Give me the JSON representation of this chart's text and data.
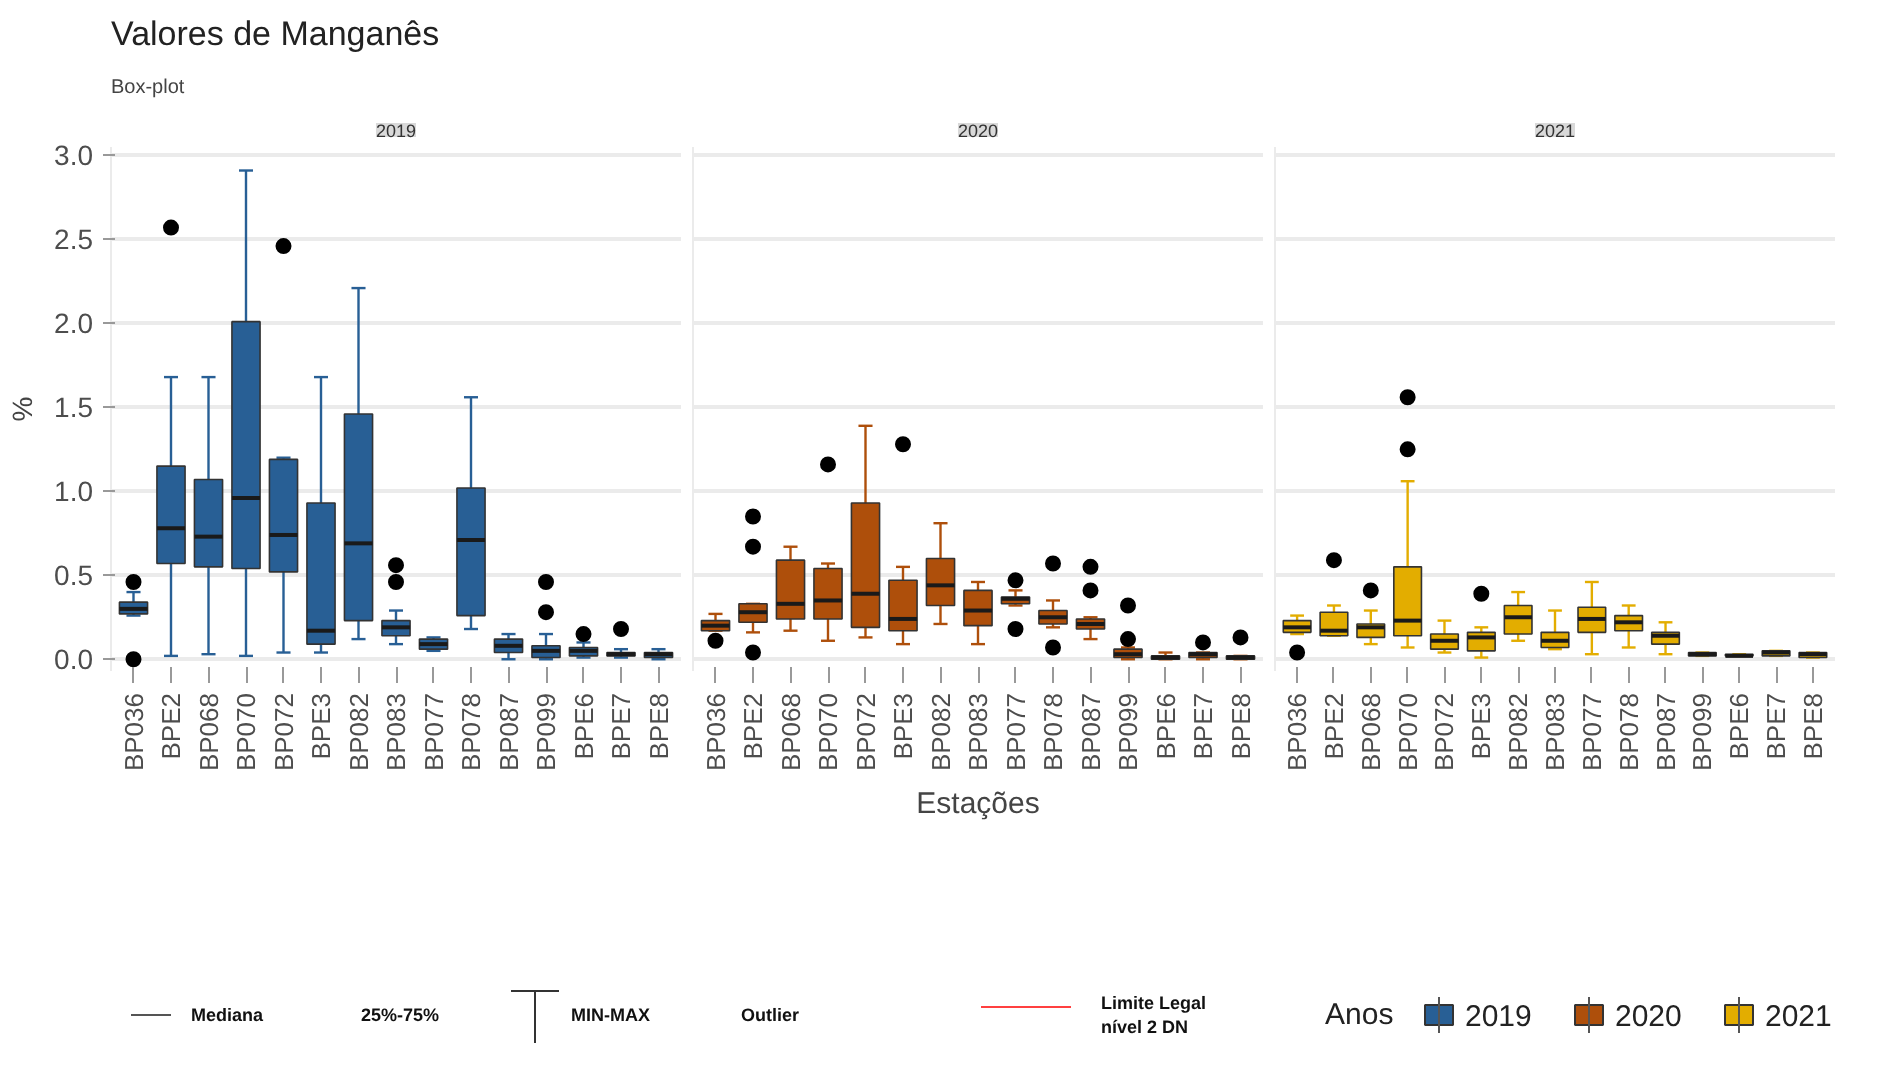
{
  "chart_data": [
    {
      "type": "box",
      "title": "Valores de Manganês",
      "subtitle": "Box-plot",
      "ylabel": "%",
      "grid": "y",
      "categories": [
        "BP036",
        "BPE2",
        "BP068",
        "BP070",
        "BP072",
        "BPE3",
        "BP082",
        "BP083",
        "BP077",
        "BP078",
        "BP087",
        "BP099",
        "BPE6",
        "BPE7",
        "BPE8"
      ],
      "ylim": [
        -0.07,
        3.05
      ],
      "yticks": [
        {
          "value": 0,
          "label": "0.0"
        },
        {
          "value": 0.5,
          "label": "0.5"
        },
        {
          "value": 1,
          "label": "1.0"
        },
        {
          "value": 1.5,
          "label": "1.5"
        },
        {
          "value": 2,
          "label": "2.0"
        },
        {
          "value": 2.5,
          "label": "2.5"
        },
        {
          "value": 3,
          "label": "3.0"
        }
      ],
      "annotations": [
        "Mediana",
        "25%-75%",
        "MIN-MAX",
        "Outlier"
      ],
      "series": [
        {
          "name": "2019",
          "color": "#285f95",
          "boxes": [
            {
              "low": 0.26,
              "q1": 0.27,
              "median": 0.3,
              "q3": 0.34,
              "high": 0.4,
              "outliers": [
                0.46,
                0.0
              ]
            },
            {
              "low": 0.02,
              "q1": 0.57,
              "median": 0.78,
              "q3": 1.15,
              "high": 1.68,
              "outliers": [
                2.57
              ]
            },
            {
              "low": 0.03,
              "q1": 0.55,
              "median": 0.73,
              "q3": 1.07,
              "high": 1.68
            },
            {
              "low": 0.02,
              "q1": 0.54,
              "median": 0.96,
              "q3": 2.01,
              "high": 2.91
            },
            {
              "low": 0.04,
              "q1": 0.52,
              "median": 0.74,
              "q3": 1.19,
              "high": 1.2,
              "outliers": [
                2.46
              ]
            },
            {
              "low": 0.04,
              "q1": 0.09,
              "median": 0.17,
              "q3": 0.93,
              "high": 1.68
            },
            {
              "low": 0.12,
              "q1": 0.23,
              "median": 0.69,
              "q3": 1.46,
              "high": 2.21
            },
            {
              "low": 0.09,
              "q1": 0.14,
              "median": 0.19,
              "q3": 0.23,
              "high": 0.29,
              "outliers": [
                0.56,
                0.46
              ]
            },
            {
              "low": 0.05,
              "q1": 0.06,
              "median": 0.09,
              "q3": 0.12,
              "high": 0.13
            },
            {
              "low": 0.18,
              "q1": 0.26,
              "median": 0.71,
              "q3": 1.02,
              "high": 1.56
            },
            {
              "low": 0.0,
              "q1": 0.04,
              "median": 0.08,
              "q3": 0.12,
              "high": 0.15
            },
            {
              "low": 0.0,
              "q1": 0.01,
              "median": 0.05,
              "q3": 0.08,
              "high": 0.15,
              "outliers": [
                0.46,
                0.28
              ]
            },
            {
              "low": 0.01,
              "q1": 0.02,
              "median": 0.05,
              "q3": 0.07,
              "high": 0.1,
              "outliers": [
                0.15
              ]
            },
            {
              "low": 0.01,
              "q1": 0.02,
              "median": 0.03,
              "q3": 0.04,
              "high": 0.06,
              "outliers": [
                0.18
              ]
            },
            {
              "low": 0.0,
              "q1": 0.01,
              "median": 0.03,
              "q3": 0.04,
              "high": 0.06
            }
          ]
        }
      ]
    },
    {
      "type": "box",
      "xlabel": "Estações",
      "grid": "y",
      "tick_labels": "x",
      "categories": [
        "BP036",
        "BPE2",
        "BP068",
        "BP070",
        "BP072",
        "BPE3",
        "BP082",
        "BP083",
        "BP077",
        "BP078",
        "BP087",
        "BP099",
        "BPE6",
        "BPE7",
        "BPE8"
      ],
      "ylim": [
        -0.07,
        3.05
      ],
      "yticks": [
        0,
        0.5,
        1,
        1.5,
        2,
        2.5,
        3
      ],
      "annotations": [
        "Limite Legal\nnível 2 DN"
      ],
      "series": [
        {
          "name": "2020",
          "color": "#ae4f0b",
          "boxes": [
            {
              "low": 0.17,
              "q1": 0.17,
              "median": 0.2,
              "q3": 0.23,
              "high": 0.27,
              "outliers": [
                0.11
              ]
            },
            {
              "low": 0.16,
              "q1": 0.22,
              "median": 0.28,
              "q3": 0.33,
              "high": 0.33,
              "outliers": [
                0.85,
                0.67,
                0.04
              ]
            },
            {
              "low": 0.17,
              "q1": 0.24,
              "median": 0.33,
              "q3": 0.59,
              "high": 0.67
            },
            {
              "low": 0.11,
              "q1": 0.24,
              "median": 0.35,
              "q3": 0.54,
              "high": 0.57,
              "outliers": [
                1.16
              ]
            },
            {
              "low": 0.13,
              "q1": 0.19,
              "median": 0.39,
              "q3": 0.93,
              "high": 1.39
            },
            {
              "low": 0.09,
              "q1": 0.17,
              "median": 0.24,
              "q3": 0.47,
              "high": 0.55,
              "outliers": [
                1.28
              ]
            },
            {
              "low": 0.21,
              "q1": 0.32,
              "median": 0.44,
              "q3": 0.6,
              "high": 0.81
            },
            {
              "low": 0.09,
              "q1": 0.2,
              "median": 0.29,
              "q3": 0.41,
              "high": 0.46
            },
            {
              "low": 0.32,
              "q1": 0.33,
              "median": 0.36,
              "q3": 0.37,
              "high": 0.41,
              "outliers": [
                0.47,
                0.18
              ]
            },
            {
              "low": 0.19,
              "q1": 0.21,
              "median": 0.25,
              "q3": 0.29,
              "high": 0.35,
              "outliers": [
                0.57,
                0.07
              ]
            },
            {
              "low": 0.12,
              "q1": 0.18,
              "median": 0.21,
              "q3": 0.24,
              "high": 0.25,
              "outliers": [
                0.55,
                0.41
              ]
            },
            {
              "low": 0.0,
              "q1": 0.01,
              "median": 0.03,
              "q3": 0.06,
              "high": 0.07,
              "outliers": [
                0.32,
                0.12
              ]
            },
            {
              "low": 0.0,
              "q1": 0.0,
              "median": 0.01,
              "q3": 0.02,
              "high": 0.04
            },
            {
              "low": 0.0,
              "q1": 0.01,
              "median": 0.03,
              "q3": 0.04,
              "high": 0.04,
              "outliers": [
                0.1
              ]
            },
            {
              "low": 0.0,
              "q1": 0.0,
              "median": 0.01,
              "q3": 0.02,
              "high": 0.02,
              "outliers": [
                0.13
              ]
            }
          ]
        }
      ]
    },
    {
      "type": "box",
      "legend": "bottom",
      "legend_title": "Anos",
      "grid": "y",
      "tick_labels": "x",
      "categories": [
        "BP036",
        "BPE2",
        "BP068",
        "BP070",
        "BP072",
        "BPE3",
        "BP082",
        "BP083",
        "BP077",
        "BP078",
        "BP087",
        "BP099",
        "BPE6",
        "BPE7",
        "BPE8"
      ],
      "ylim": [
        -0.07,
        3.05
      ],
      "yticks": [
        0,
        0.5,
        1,
        1.5,
        2,
        2.5,
        3
      ],
      "series": [
        {
          "name": "2021",
          "color": "#e3ad00",
          "boxes": [
            {
              "low": 0.15,
              "q1": 0.16,
              "median": 0.19,
              "q3": 0.23,
              "high": 0.26,
              "outliers": [
                0.04
              ]
            },
            {
              "low": 0.14,
              "q1": 0.14,
              "median": 0.17,
              "q3": 0.28,
              "high": 0.32,
              "outliers": [
                0.59
              ]
            },
            {
              "low": 0.09,
              "q1": 0.13,
              "median": 0.19,
              "q3": 0.21,
              "high": 0.29,
              "outliers": [
                0.41
              ]
            },
            {
              "low": 0.07,
              "q1": 0.14,
              "median": 0.23,
              "q3": 0.55,
              "high": 1.06,
              "outliers": [
                1.56,
                1.25
              ]
            },
            {
              "low": 0.04,
              "q1": 0.06,
              "median": 0.11,
              "q3": 0.15,
              "high": 0.23
            },
            {
              "low": 0.01,
              "q1": 0.05,
              "median": 0.13,
              "q3": 0.16,
              "high": 0.19,
              "outliers": [
                0.39
              ]
            },
            {
              "low": 0.11,
              "q1": 0.15,
              "median": 0.25,
              "q3": 0.32,
              "high": 0.4
            },
            {
              "low": 0.06,
              "q1": 0.07,
              "median": 0.11,
              "q3": 0.16,
              "high": 0.29
            },
            {
              "low": 0.03,
              "q1": 0.16,
              "median": 0.24,
              "q3": 0.31,
              "high": 0.46
            },
            {
              "low": 0.07,
              "q1": 0.17,
              "median": 0.22,
              "q3": 0.26,
              "high": 0.32
            },
            {
              "low": 0.03,
              "q1": 0.09,
              "median": 0.14,
              "q3": 0.16,
              "high": 0.22
            },
            {
              "low": 0.02,
              "q1": 0.02,
              "median": 0.03,
              "q3": 0.04,
              "high": 0.04
            },
            {
              "low": 0.02,
              "q1": 0.02,
              "median": 0.02,
              "q3": 0.03,
              "high": 0.03
            },
            {
              "low": 0.02,
              "q1": 0.02,
              "median": 0.04,
              "q3": 0.05,
              "high": 0.05
            },
            {
              "low": 0.01,
              "q1": 0.01,
              "median": 0.03,
              "q3": 0.04,
              "high": 0.04
            }
          ]
        }
      ]
    }
  ]
}
